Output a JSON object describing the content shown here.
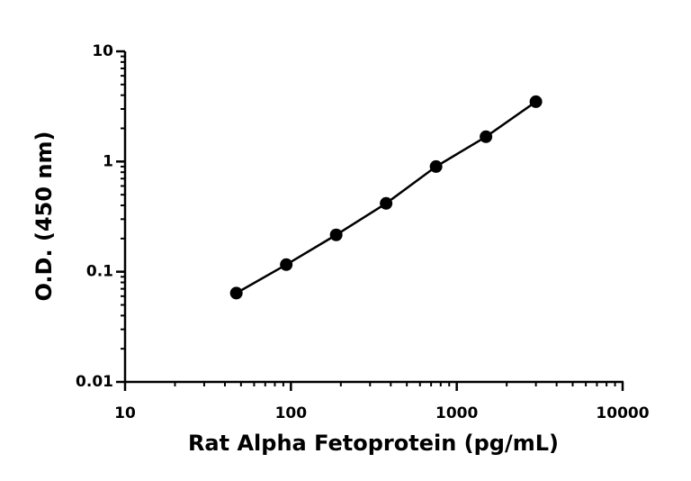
{
  "chart_data": {
    "type": "line",
    "markers": true,
    "x_label": "Rat Alpha Fetoprotein (pg/mL)",
    "y_label": "O.D. (450 nm)",
    "x": [
      46.875,
      93.75,
      187.5,
      375,
      750,
      1500,
      3000
    ],
    "values": [
      0.064,
      0.116,
      0.216,
      0.417,
      0.9,
      1.68,
      3.49
    ],
    "color": "#000000",
    "x_scale": "log",
    "y_scale": "log",
    "xlim": [
      10,
      10000
    ],
    "xticks": [
      10,
      100,
      1000,
      10000
    ],
    "x_minor_ticks": [
      20,
      30,
      40,
      50,
      60,
      70,
      80,
      90,
      200,
      300,
      400,
      500,
      600,
      700,
      800,
      900,
      2000,
      3000,
      4000,
      5000,
      6000,
      7000,
      8000,
      9000
    ],
    "ylim": [
      0.01,
      10
    ],
    "yticks": [
      0.01,
      0.1,
      1,
      10
    ],
    "y_minor_ticks": [
      0.02,
      0.03,
      0.04,
      0.05,
      0.06,
      0.07,
      0.08,
      0.09,
      0.2,
      0.3,
      0.4,
      0.5,
      0.6,
      0.7,
      0.8,
      0.9,
      2,
      3,
      4,
      5,
      6,
      7,
      8,
      9
    ],
    "grid": false
  }
}
